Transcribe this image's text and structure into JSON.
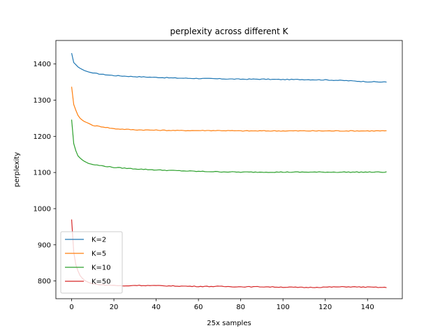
{
  "chart_data": {
    "type": "line",
    "title": "perplexity across different K",
    "xlabel": "25x samples",
    "ylabel": "perplexity",
    "xlim": [
      -7.45,
      156.45
    ],
    "ylim": [
      751,
      1465
    ],
    "xticks": [
      0,
      20,
      40,
      60,
      80,
      100,
      120,
      140
    ],
    "yticks": [
      800,
      900,
      1000,
      1100,
      1200,
      1300,
      1400
    ],
    "grid": false,
    "legend_position": "lower left",
    "x": {
      "start": 0,
      "end": 149
    },
    "series": [
      {
        "name": "K=2",
        "color": "#1f77b4",
        "points": [
          [
            0,
            1430
          ],
          [
            1,
            1404
          ],
          [
            2,
            1398
          ],
          [
            3,
            1392
          ],
          [
            4,
            1388
          ],
          [
            5,
            1385
          ],
          [
            6,
            1382
          ],
          [
            8,
            1378
          ],
          [
            10,
            1375
          ],
          [
            15,
            1371
          ],
          [
            20,
            1368
          ],
          [
            30,
            1365
          ],
          [
            40,
            1363
          ],
          [
            50,
            1361
          ],
          [
            60,
            1360
          ],
          [
            70,
            1359
          ],
          [
            80,
            1358
          ],
          [
            90,
            1358
          ],
          [
            100,
            1357
          ],
          [
            110,
            1357
          ],
          [
            120,
            1356
          ],
          [
            130,
            1354
          ],
          [
            140,
            1351
          ],
          [
            149,
            1350
          ]
        ]
      },
      {
        "name": "K=5",
        "color": "#ff7f0e",
        "points": [
          [
            0,
            1337
          ],
          [
            1,
            1288
          ],
          [
            2,
            1272
          ],
          [
            3,
            1258
          ],
          [
            4,
            1250
          ],
          [
            5,
            1245
          ],
          [
            6,
            1241
          ],
          [
            8,
            1236
          ],
          [
            10,
            1230
          ],
          [
            15,
            1226
          ],
          [
            20,
            1221
          ],
          [
            30,
            1218
          ],
          [
            40,
            1217
          ],
          [
            50,
            1216
          ],
          [
            60,
            1216
          ],
          [
            70,
            1216
          ],
          [
            80,
            1215
          ],
          [
            90,
            1215
          ],
          [
            100,
            1215
          ],
          [
            110,
            1215
          ],
          [
            120,
            1215
          ],
          [
            130,
            1215
          ],
          [
            140,
            1215
          ],
          [
            149,
            1215
          ]
        ]
      },
      {
        "name": "K=10",
        "color": "#2ca02c",
        "points": [
          [
            0,
            1246
          ],
          [
            1,
            1180
          ],
          [
            2,
            1160
          ],
          [
            3,
            1146
          ],
          [
            4,
            1140
          ],
          [
            5,
            1135
          ],
          [
            6,
            1131
          ],
          [
            8,
            1125
          ],
          [
            10,
            1122
          ],
          [
            15,
            1118
          ],
          [
            20,
            1114
          ],
          [
            30,
            1110
          ],
          [
            40,
            1107
          ],
          [
            50,
            1105
          ],
          [
            60,
            1103
          ],
          [
            70,
            1102
          ],
          [
            80,
            1101
          ],
          [
            90,
            1101
          ],
          [
            100,
            1101
          ],
          [
            110,
            1101
          ],
          [
            120,
            1101
          ],
          [
            130,
            1101
          ],
          [
            140,
            1101
          ],
          [
            149,
            1101
          ]
        ]
      },
      {
        "name": "K=50",
        "color": "#d62728",
        "points": [
          [
            0,
            970
          ],
          [
            1,
            880
          ],
          [
            2,
            845
          ],
          [
            3,
            828
          ],
          [
            4,
            815
          ],
          [
            5,
            808
          ],
          [
            6,
            802
          ],
          [
            8,
            796
          ],
          [
            10,
            792
          ],
          [
            15,
            789
          ],
          [
            20,
            788
          ],
          [
            25,
            786
          ],
          [
            30,
            788
          ],
          [
            40,
            787
          ],
          [
            50,
            786
          ],
          [
            60,
            785
          ],
          [
            70,
            785
          ],
          [
            80,
            784
          ],
          [
            90,
            784
          ],
          [
            100,
            783
          ],
          [
            110,
            782
          ],
          [
            120,
            783
          ],
          [
            130,
            784
          ],
          [
            140,
            783
          ],
          [
            149,
            782
          ]
        ]
      }
    ]
  }
}
